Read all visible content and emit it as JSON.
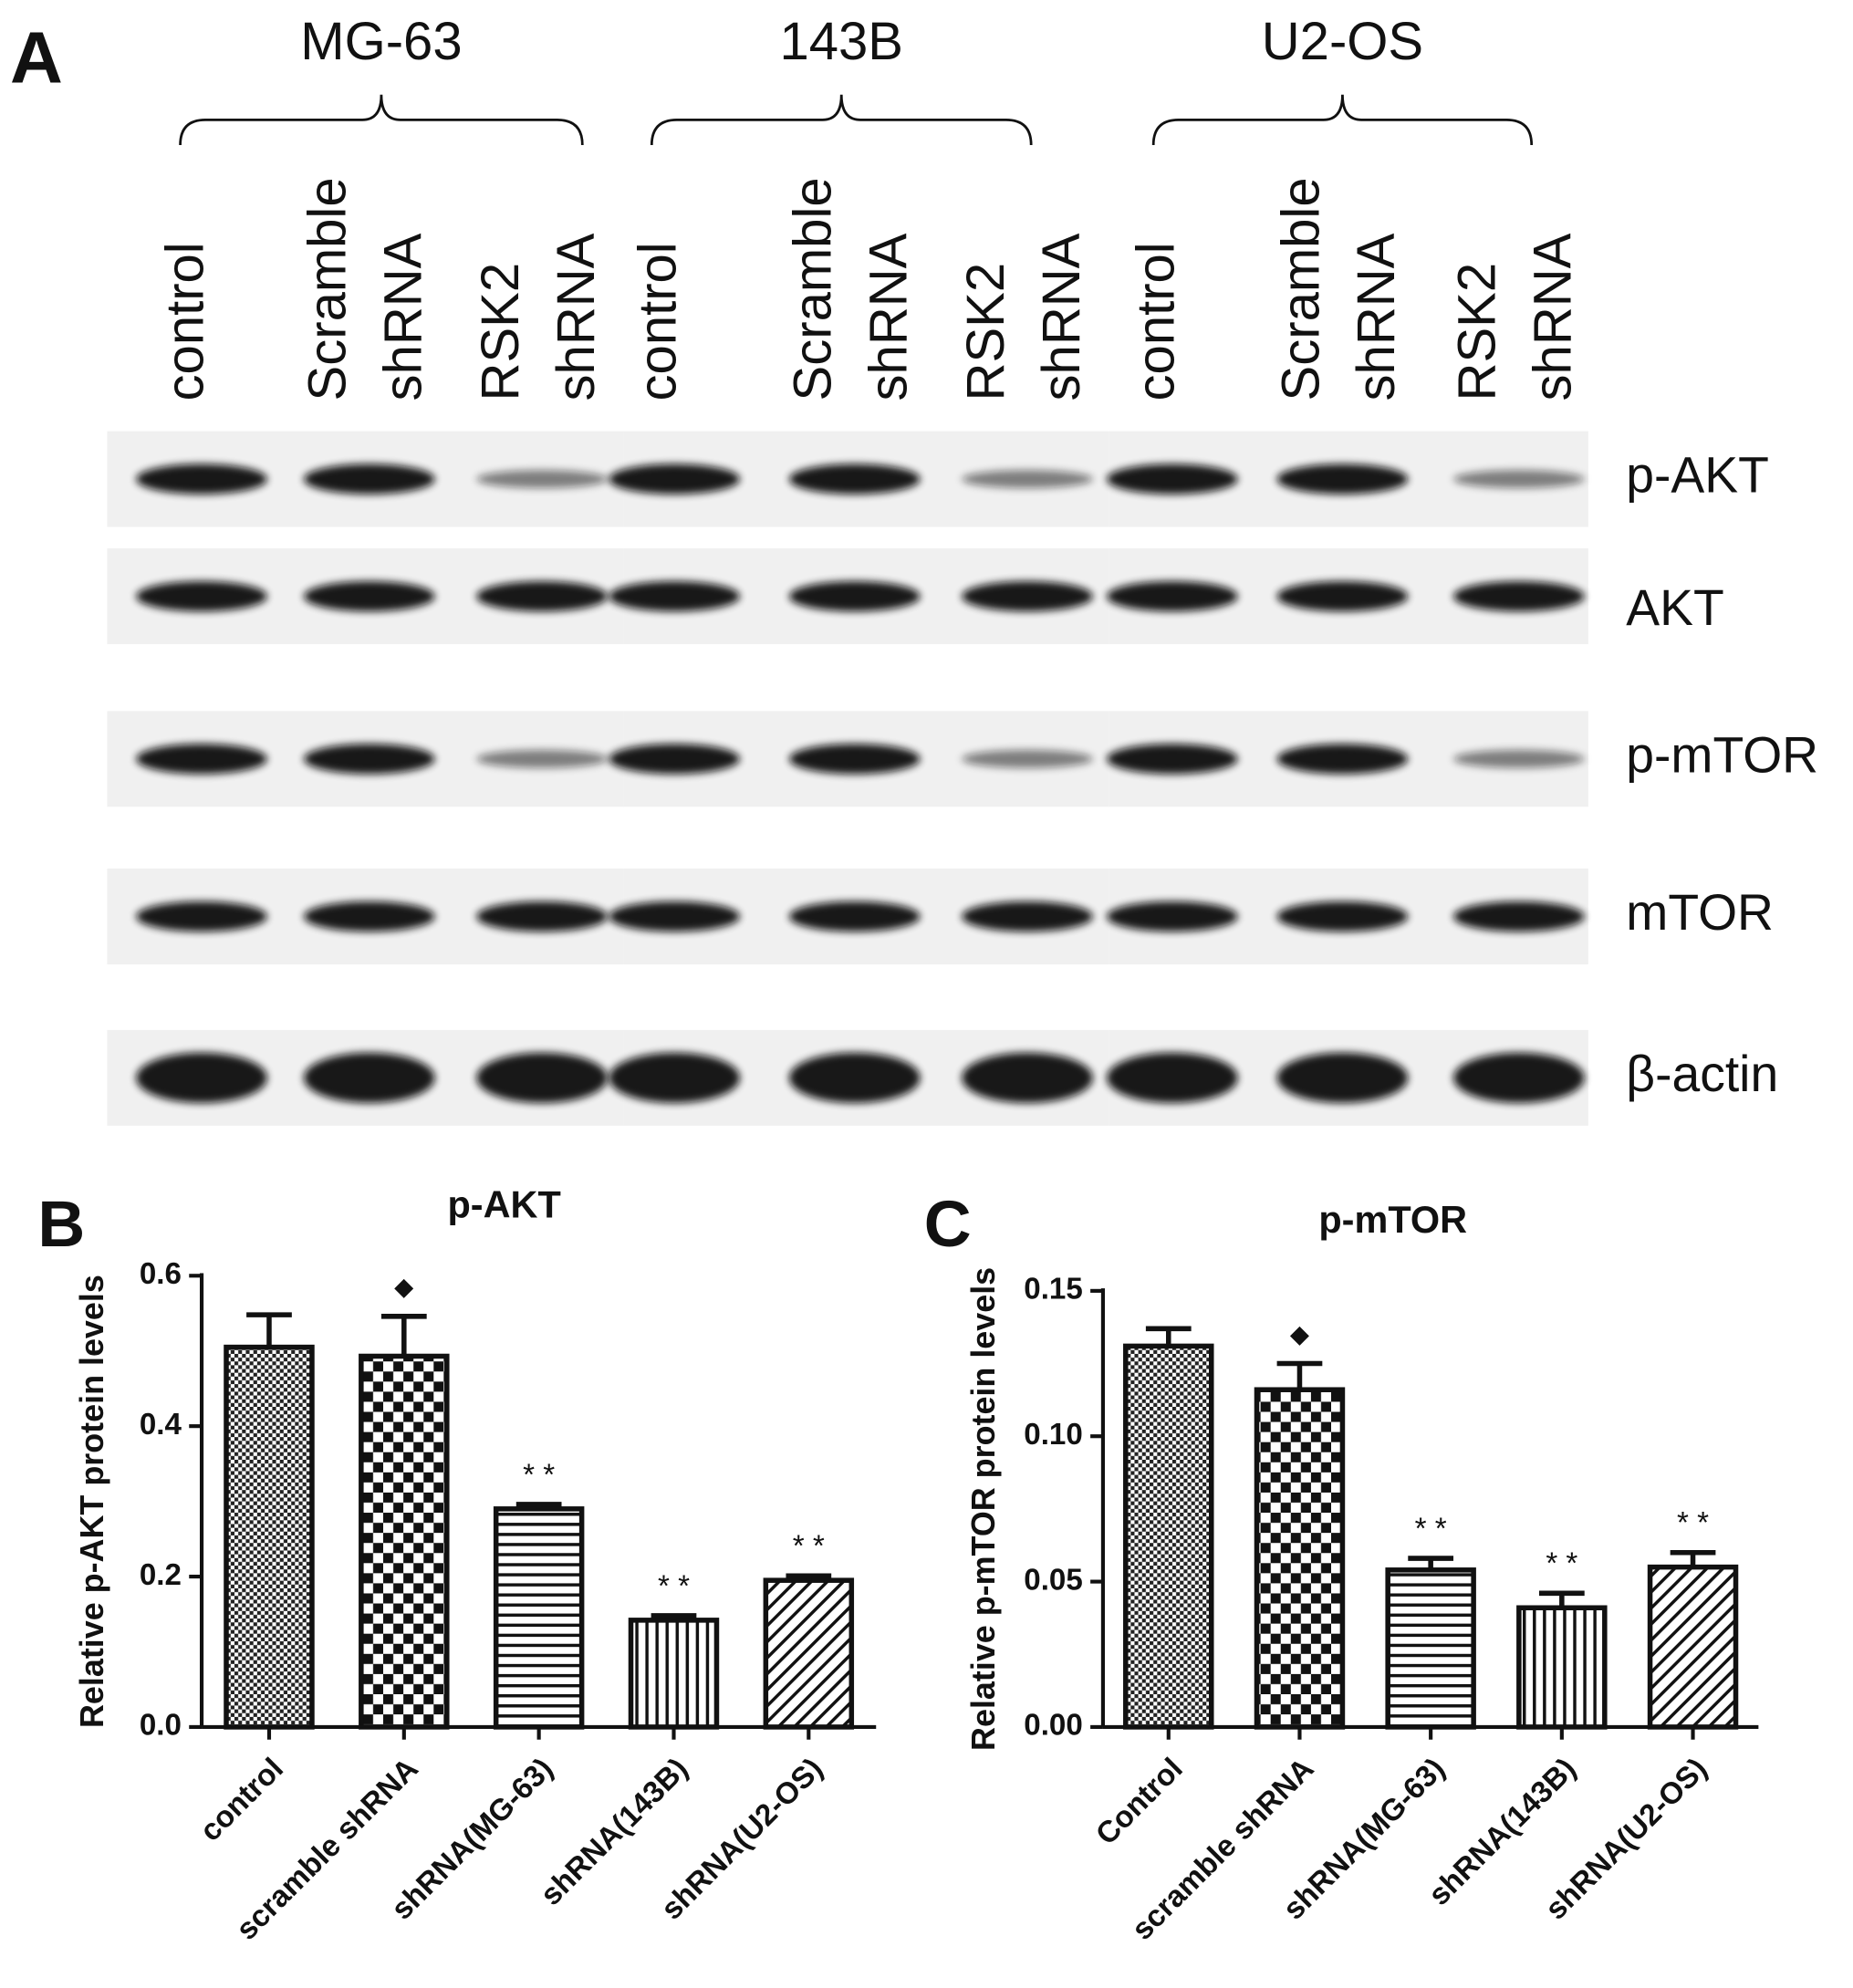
{
  "panel_a": {
    "label": "A",
    "groups": [
      {
        "name": "MG-63",
        "lanes": [
          [
            "control"
          ],
          [
            "Scramble",
            "shRNA"
          ],
          [
            "RSK2",
            "shRNA"
          ]
        ]
      },
      {
        "name": "143B",
        "lanes": [
          [
            "control"
          ],
          [
            "Scramble",
            "shRNA"
          ],
          [
            "RSK2",
            "shRNA"
          ]
        ]
      },
      {
        "name": "U2-OS",
        "lanes": [
          [
            "control"
          ],
          [
            "Scramble",
            "shRNA"
          ],
          [
            "RSK2",
            "shRNA"
          ]
        ]
      }
    ],
    "proteins": [
      "p-AKT",
      "AKT",
      "p-mTOR",
      "mTOR",
      "β-actin"
    ]
  },
  "chart_data": [
    {
      "type": "bar",
      "panel_label": "B",
      "title": "p-AKT",
      "y_label": "Relative p-AKT protein levels",
      "categories": [
        "control",
        "scramble shRNA",
        "shRNA(MG-63)",
        "shRNA(143B)",
        "shRNA(U2-OS)"
      ],
      "values": [
        0.505,
        0.493,
        0.29,
        0.142,
        0.195
      ],
      "errors": [
        0.043,
        0.053,
        0.006,
        0.006,
        0.006
      ],
      "markers": [
        null,
        "◆",
        "* *",
        "* *",
        "* *"
      ],
      "patterns": [
        "dots",
        "checker",
        "horizontal",
        "vertical",
        "diagonal"
      ],
      "ylim": [
        0,
        0.6
      ],
      "yticks": [
        {
          "value": 0,
          "label": "0.0"
        },
        0.2,
        0.4,
        0.6
      ]
    },
    {
      "type": "bar",
      "panel_label": "C",
      "title": "p-mTOR",
      "y_label": "Relative p-mTOR protein levels",
      "categories": [
        "Control",
        "scramble shRNA",
        "shRNA(MG-63)",
        "shRNA(143B)",
        "shRNA(U2-OS)"
      ],
      "values": [
        0.131,
        0.116,
        0.054,
        0.041,
        0.055
      ],
      "errors": [
        0.006,
        0.009,
        0.004,
        0.005,
        0.005
      ],
      "markers": [
        null,
        "◆",
        "* *",
        "* *",
        "* *"
      ],
      "patterns": [
        "dots",
        "checker",
        "horizontal",
        "vertical",
        "diagonal"
      ],
      "ylim": [
        0,
        0.15
      ],
      "yticks": [
        {
          "value": 0,
          "label": "0.00"
        },
        0.05,
        {
          "value": 0.1,
          "label": "0.10"
        },
        0.15
      ]
    }
  ]
}
